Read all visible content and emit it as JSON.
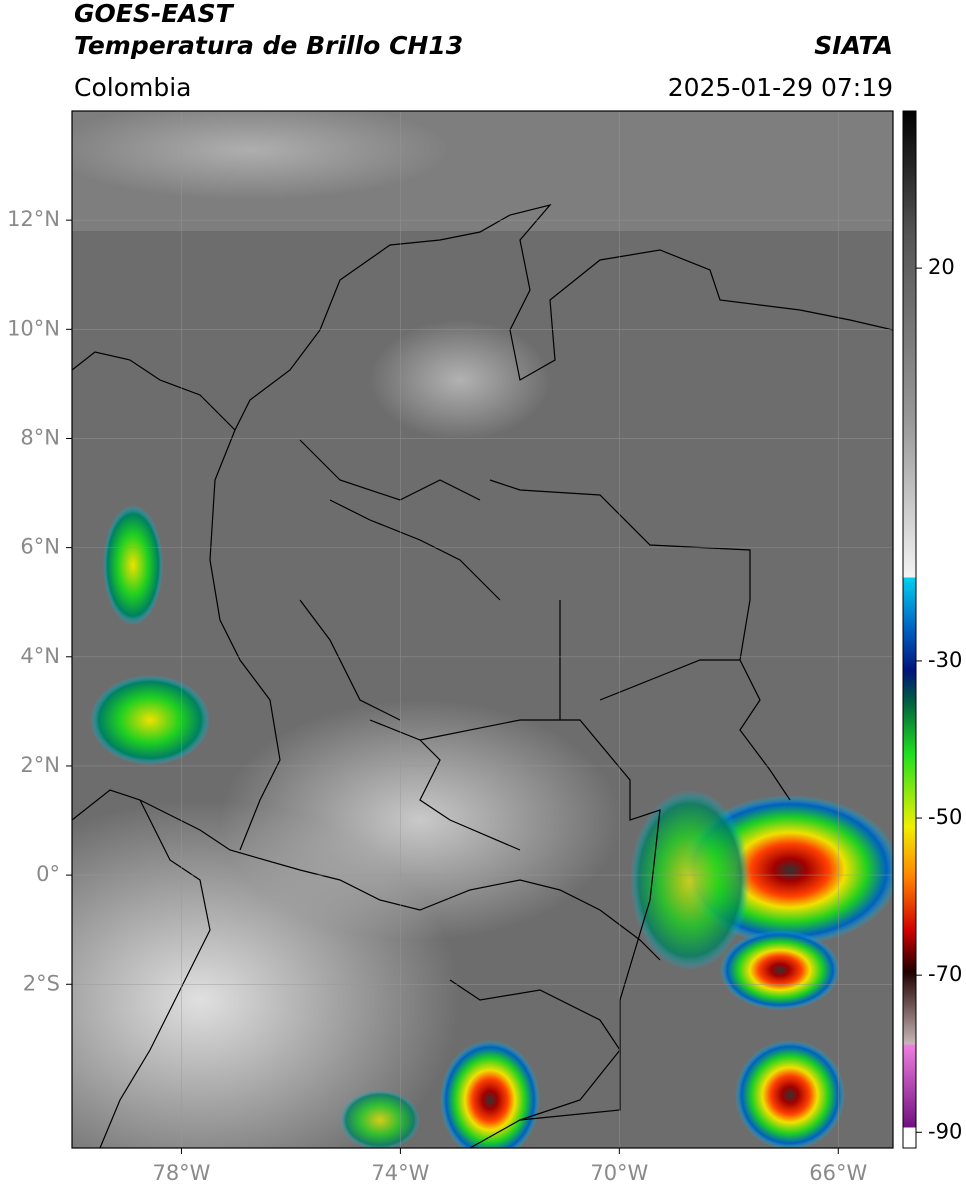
{
  "header": {
    "title": "GOES-EAST",
    "subtitle": "Temperatura de Brillo CH13",
    "source": "SIATA",
    "region": "Colombia",
    "datetime": "2025-01-29 07:19"
  },
  "map": {
    "xlim": [
      -80,
      -65
    ],
    "ylim": [
      -5,
      14
    ],
    "xticks": [
      {
        "value": -78,
        "label": "78°W"
      },
      {
        "value": -74,
        "label": "74°W"
      },
      {
        "value": -70,
        "label": "70°W"
      },
      {
        "value": -66,
        "label": "66°W"
      }
    ],
    "yticks": [
      {
        "value": 12,
        "label": "12°N"
      },
      {
        "value": 10,
        "label": "10°N"
      },
      {
        "value": 8,
        "label": "8°N"
      },
      {
        "value": 6,
        "label": "6°N"
      },
      {
        "value": 4,
        "label": "4°N"
      },
      {
        "value": 2,
        "label": "2°N"
      },
      {
        "value": 0,
        "label": "0°"
      },
      {
        "value": -2,
        "label": "2°S"
      }
    ],
    "grid": true
  },
  "colorbar": {
    "lim": [
      -92,
      40
    ],
    "ticks": [
      20,
      -30,
      -50,
      -70,
      -90
    ]
  }
}
